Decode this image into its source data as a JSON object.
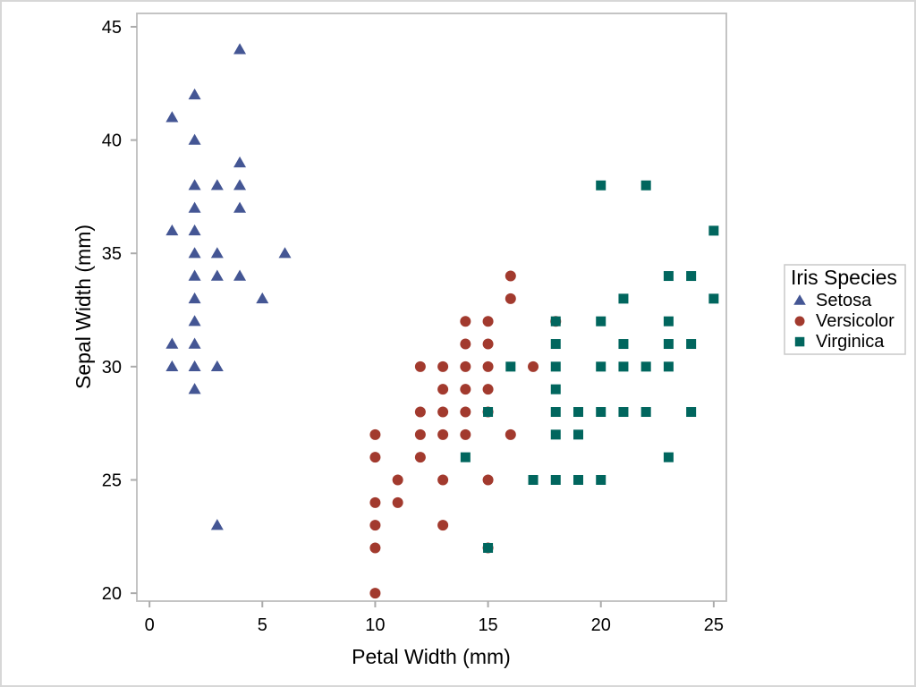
{
  "figure": {
    "background": "#FFFFFF",
    "border_color": "#D7D7D7"
  },
  "chart_data": {
    "type": "scatter",
    "title": "",
    "xlabel": "Petal Width (mm)",
    "ylabel": "Sepal Width (mm)",
    "x_ticks": [
      0,
      5,
      10,
      15,
      20,
      25
    ],
    "y_ticks": [
      20,
      25,
      30,
      35,
      40,
      45
    ],
    "xlim": [
      -0.56,
      25.56
    ],
    "ylim": [
      19.65,
      45.59
    ],
    "grid": false,
    "frame_color": "#BDBDBD",
    "tick_color": "#ABABAB",
    "legend": {
      "title": "Iris Species",
      "position": "right-outside",
      "border": true
    },
    "series": [
      {
        "name": "Setosa",
        "marker": "triangle",
        "color": "#445694",
        "points": [
          [
            1,
            30
          ],
          [
            1,
            31
          ],
          [
            1,
            36
          ],
          [
            1,
            41
          ],
          [
            2,
            29
          ],
          [
            2,
            30
          ],
          [
            2,
            31
          ],
          [
            2,
            32
          ],
          [
            2,
            33
          ],
          [
            2,
            34
          ],
          [
            2,
            35
          ],
          [
            2,
            36
          ],
          [
            2,
            37
          ],
          [
            2,
            38
          ],
          [
            2,
            40
          ],
          [
            2,
            42
          ],
          [
            3,
            23
          ],
          [
            3,
            30
          ],
          [
            3,
            34
          ],
          [
            3,
            35
          ],
          [
            3,
            38
          ],
          [
            4,
            34
          ],
          [
            4,
            37
          ],
          [
            4,
            38
          ],
          [
            4,
            39
          ],
          [
            4,
            44
          ],
          [
            5,
            33
          ],
          [
            6,
            35
          ]
        ]
      },
      {
        "name": "Versicolor",
        "marker": "circle",
        "color": "#A23A2E",
        "points": [
          [
            10,
            20
          ],
          [
            10,
            22
          ],
          [
            10,
            23
          ],
          [
            10,
            24
          ],
          [
            10,
            26
          ],
          [
            10,
            27
          ],
          [
            11,
            24
          ],
          [
            11,
            25
          ],
          [
            12,
            26
          ],
          [
            12,
            27
          ],
          [
            12,
            28
          ],
          [
            12,
            30
          ],
          [
            13,
            23
          ],
          [
            13,
            25
          ],
          [
            13,
            27
          ],
          [
            13,
            28
          ],
          [
            13,
            29
          ],
          [
            13,
            30
          ],
          [
            14,
            27
          ],
          [
            14,
            28
          ],
          [
            14,
            29
          ],
          [
            14,
            30
          ],
          [
            14,
            31
          ],
          [
            14,
            32
          ],
          [
            15,
            22
          ],
          [
            15,
            25
          ],
          [
            15,
            28
          ],
          [
            15,
            29
          ],
          [
            15,
            30
          ],
          [
            15,
            31
          ],
          [
            15,
            32
          ],
          [
            16,
            27
          ],
          [
            16,
            33
          ],
          [
            16,
            34
          ],
          [
            17,
            30
          ],
          [
            18,
            32
          ]
        ]
      },
      {
        "name": "Virginica",
        "marker": "square",
        "color": "#01665E",
        "points": [
          [
            14,
            26
          ],
          [
            15,
            22
          ],
          [
            15,
            28
          ],
          [
            16,
            30
          ],
          [
            17,
            25
          ],
          [
            18,
            25
          ],
          [
            18,
            27
          ],
          [
            18,
            28
          ],
          [
            18,
            29
          ],
          [
            18,
            30
          ],
          [
            18,
            31
          ],
          [
            18,
            32
          ],
          [
            19,
            25
          ],
          [
            19,
            27
          ],
          [
            19,
            28
          ],
          [
            20,
            25
          ],
          [
            20,
            28
          ],
          [
            20,
            30
          ],
          [
            20,
            32
          ],
          [
            20,
            38
          ],
          [
            21,
            28
          ],
          [
            21,
            30
          ],
          [
            21,
            31
          ],
          [
            21,
            33
          ],
          [
            22,
            28
          ],
          [
            22,
            30
          ],
          [
            22,
            38
          ],
          [
            23,
            26
          ],
          [
            23,
            30
          ],
          [
            23,
            31
          ],
          [
            23,
            32
          ],
          [
            23,
            34
          ],
          [
            24,
            28
          ],
          [
            24,
            31
          ],
          [
            24,
            34
          ],
          [
            25,
            33
          ],
          [
            25,
            36
          ]
        ]
      }
    ]
  }
}
